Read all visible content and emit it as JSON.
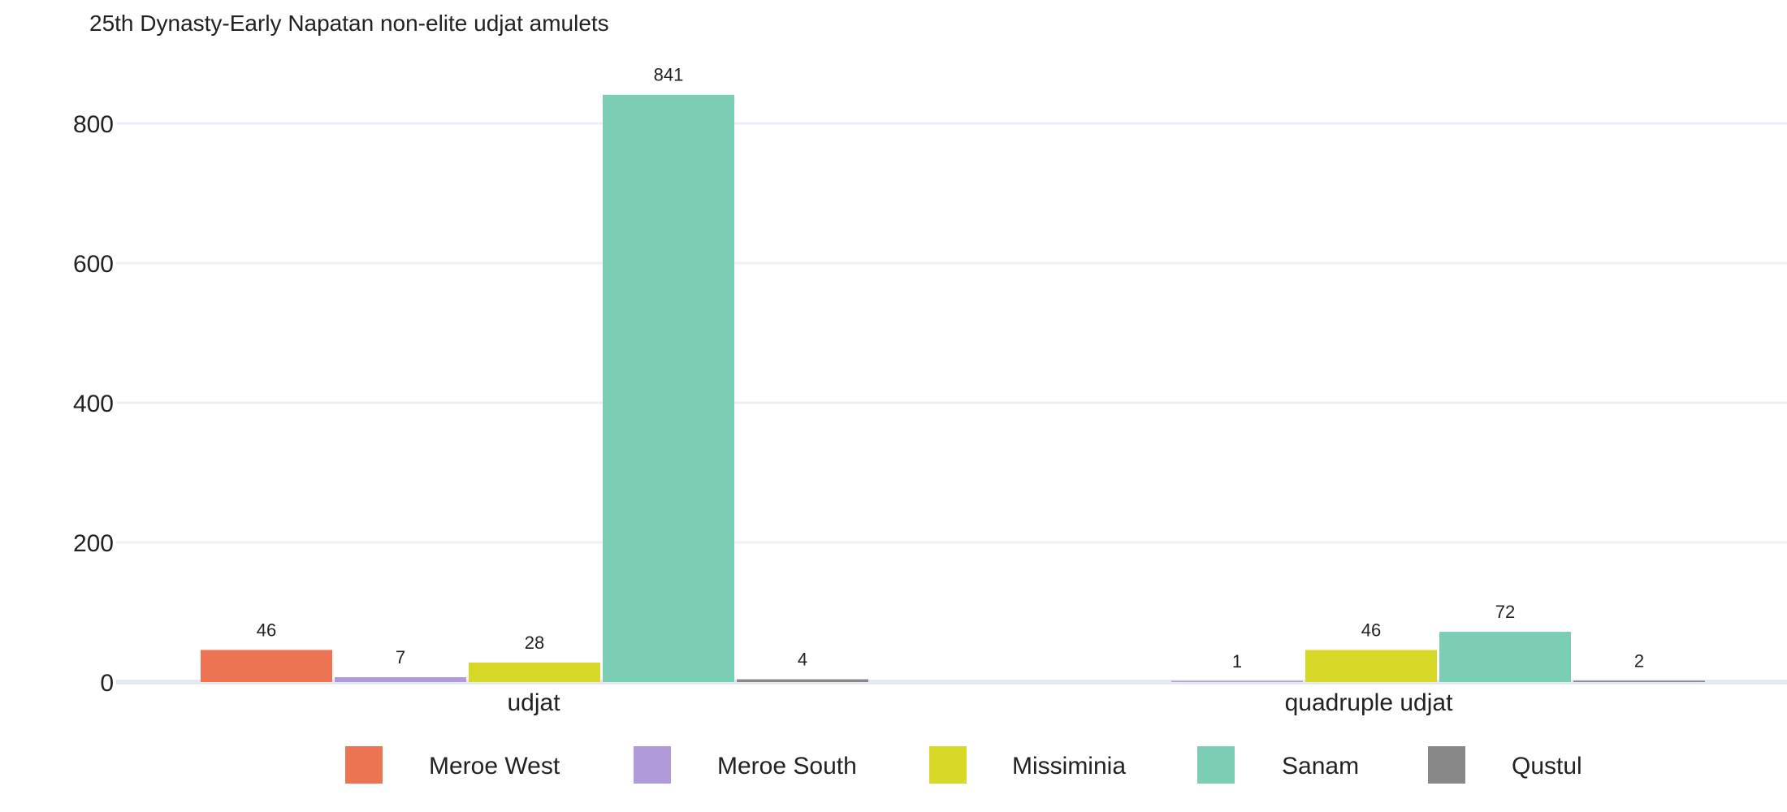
{
  "chart_data": {
    "type": "bar",
    "title": "25th Dynasty-Early Napatan non-elite udjat amulets",
    "xlabel": "",
    "ylabel": "",
    "categories": [
      "udjat",
      "quadruple udjat"
    ],
    "ylim": [
      0,
      880
    ],
    "yticks": [
      0,
      200,
      400,
      600,
      800
    ],
    "grid": true,
    "legend_position": "bottom",
    "series": [
      {
        "name": "Meroe West",
        "color": "#ec7452",
        "values": [
          46,
          0
        ],
        "labels": [
          "46",
          null
        ]
      },
      {
        "name": "Meroe South",
        "color": "#b09ad8",
        "values": [
          7,
          1
        ],
        "labels": [
          "7",
          "1"
        ]
      },
      {
        "name": "Missiminia",
        "color": "#d8d829",
        "values": [
          28,
          46
        ],
        "labels": [
          "28",
          "46"
        ]
      },
      {
        "name": "Sanam",
        "color": "#7ccdb6",
        "values": [
          841,
          72
        ],
        "labels": [
          "841",
          "72"
        ]
      },
      {
        "name": "Qustul",
        "color": "#888888",
        "values": [
          4,
          2
        ],
        "labels": [
          "4",
          "2"
        ]
      }
    ]
  }
}
